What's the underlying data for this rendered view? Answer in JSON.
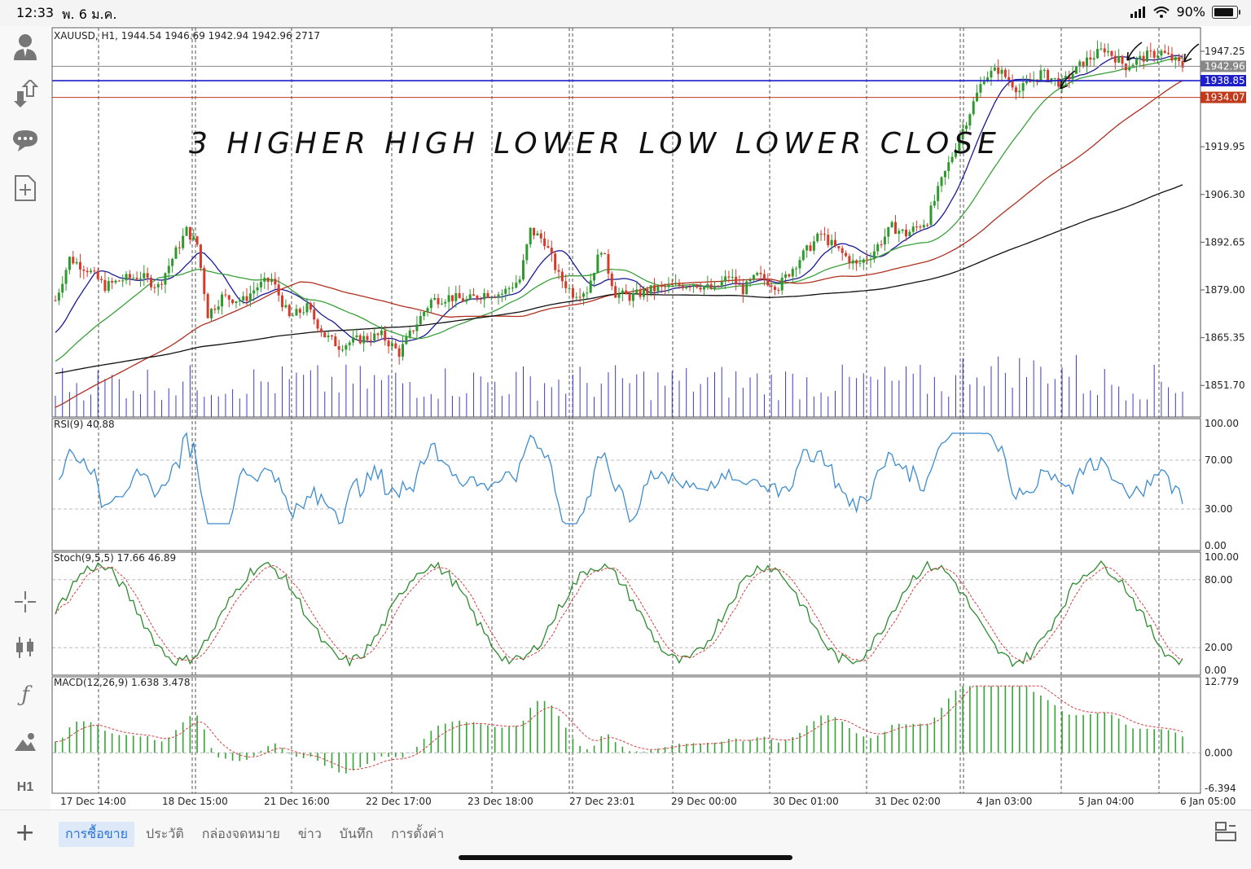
{
  "status_bar": {
    "time": "12:33",
    "date": "พ. 6 ม.ค.",
    "battery": "90%"
  },
  "symbol_header": "XAUUSD, H1, 1944.54 1946.69 1942.94 1942.96 2717",
  "annotation_text": "3 HIGHER HIGH LOWER LOW LOWER CLOSE",
  "price_axis": {
    "range": [
      1845,
      1954
    ],
    "ticks": [
      "1947.25",
      "1919.95",
      "1906.30",
      "1892.65",
      "1879.00",
      "1865.35",
      "1851.70"
    ],
    "tick_values": [
      1947.25,
      1919.95,
      1906.3,
      1892.65,
      1879.0,
      1865.35,
      1851.7
    ],
    "current": {
      "label": "1942.96",
      "value": 1942.96,
      "color": "#888888"
    },
    "blue_line": {
      "label": "1938.85",
      "value": 1938.85,
      "color": "#1e1ec8"
    },
    "red_line": {
      "label": "1934.07",
      "value": 1934.07,
      "color": "#c0391b"
    }
  },
  "rsi": {
    "header": "RSI(9) 40.88",
    "ticks": [
      "100.00",
      "70.00",
      "30.00",
      "0.00"
    ],
    "tick_values": [
      100,
      70,
      30,
      0
    ]
  },
  "stoch": {
    "header": "Stoch(9,5,5) 17.66 46.89",
    "ticks": [
      "100.00",
      "80.00",
      "20.00",
      "0.00"
    ],
    "tick_values": [
      100,
      80,
      20,
      0
    ]
  },
  "macd": {
    "header": "MACD(12,26,9) 1.638 3.478",
    "ticks": [
      "12.779",
      "0.000",
      "-6.394"
    ],
    "tick_values": [
      12.779,
      0,
      -6.394
    ]
  },
  "time_axis": [
    "17 Dec 14:00",
    "18 Dec 15:00",
    "21 Dec 16:00",
    "22 Dec 17:00",
    "23 Dec 18:00",
    "27 Dec 23:01",
    "29 Dec 00:00",
    "30 Dec 01:00",
    "31 Dec 02:00",
    "4 Jan 03:00",
    "5 Jan 04:00",
    "6 Jan 05:00"
  ],
  "left_toolbar": [
    "account-icon",
    "trade-arrows-icon",
    "chat-icon",
    "new-order-icon",
    "crosshair-icon",
    "candles-icon",
    "indicator-f-icon",
    "objects-icon"
  ],
  "timeframe": "H1",
  "bottom_tabs": [
    "การซื้อขาย",
    "ประวัติ",
    "กล่องจดหมาย",
    "ข่าว",
    "บันทึก",
    "การตั้งค่า"
  ],
  "colors": {
    "bull": "#2e9a2e",
    "bear": "#d63a2a",
    "ma_fast": "#1a1a9a",
    "ma_mid": "#3aa03a",
    "ma_slow": "#b03020",
    "ma_long": "#111111",
    "rsi": "#3c8cd0",
    "volume": "#3c3cc8",
    "macd_hist": "#35a535"
  },
  "chart_data": {
    "type": "line",
    "title": "XAUUSD, H1",
    "series": [
      {
        "name": "price",
        "x": [
          "17 Dec 14:00",
          "18 Dec 15:00",
          "21 Dec 16:00",
          "22 Dec 17:00",
          "23 Dec 18:00",
          "27 Dec 23:01",
          "29 Dec 00:00",
          "30 Dec 01:00",
          "31 Dec 02:00",
          "4 Jan 03:00",
          "5 Jan 04:00",
          "6 Jan 05:00"
        ],
        "values": [
          1884,
          1886,
          1877,
          1866,
          1877,
          1885,
          1877,
          1879,
          1895,
          1940,
          1945,
          1943
        ]
      }
    ],
    "ylim": [
      1845,
      1954
    ]
  }
}
